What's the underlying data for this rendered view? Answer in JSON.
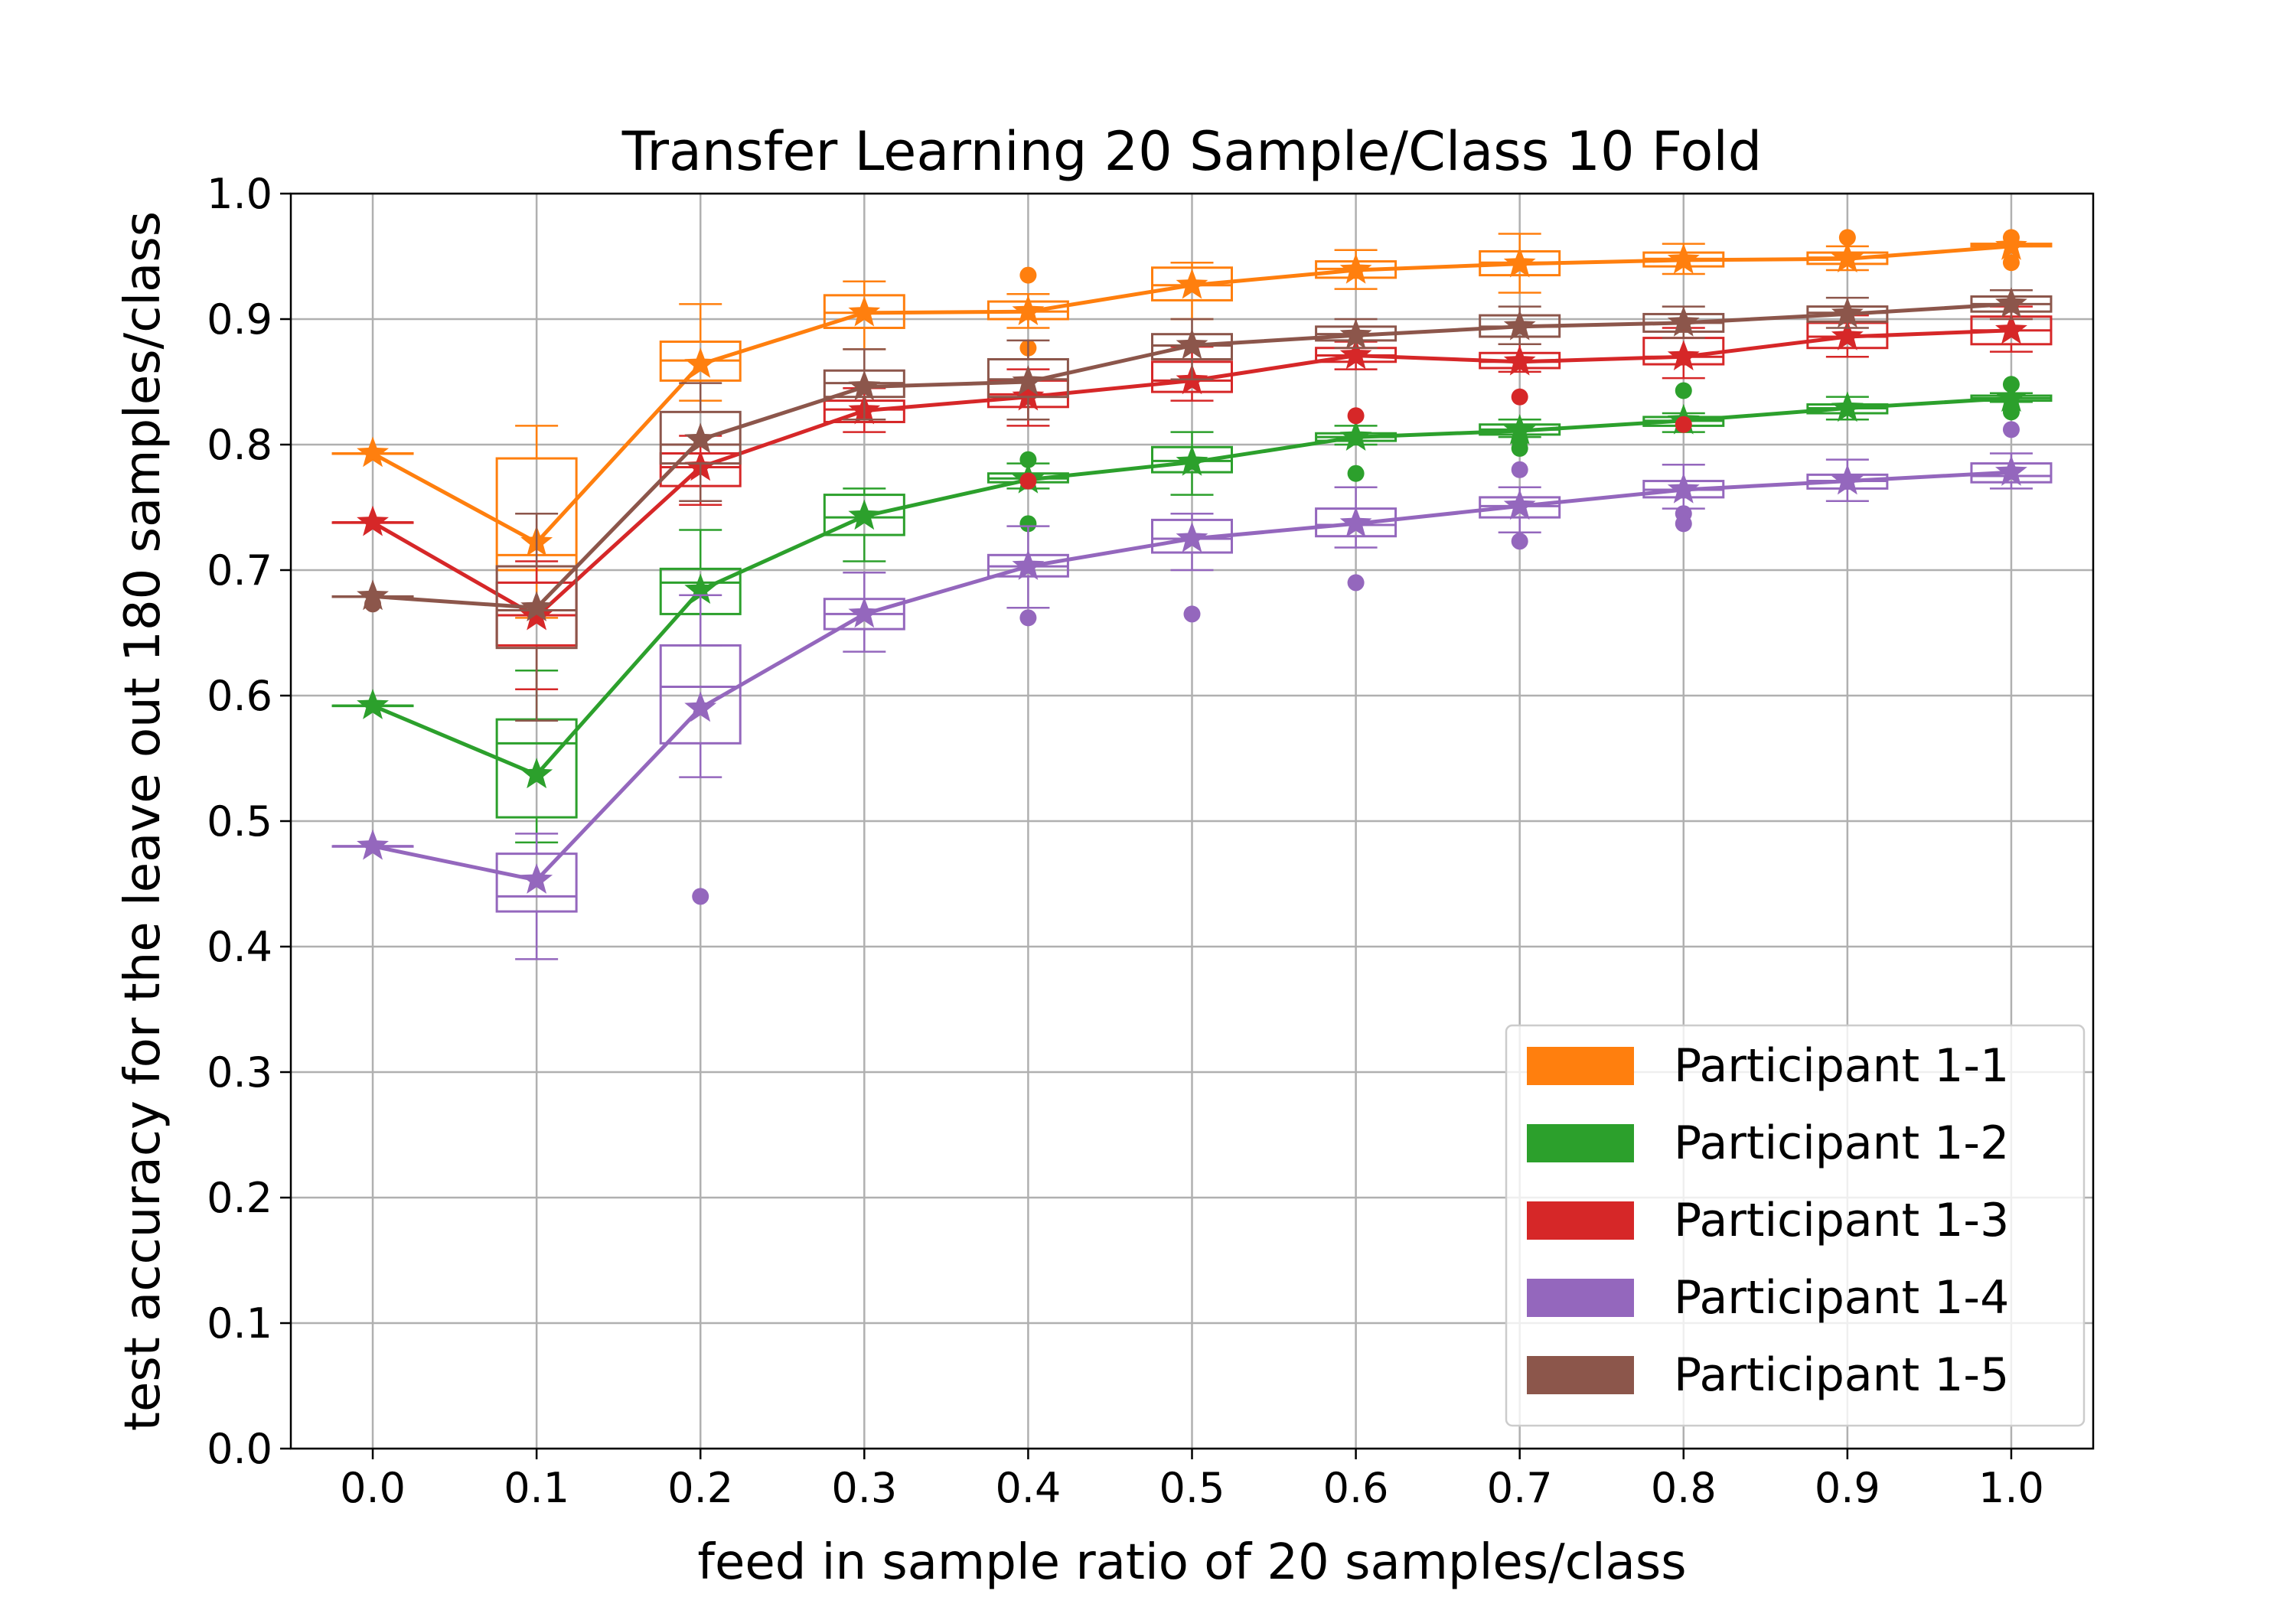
{
  "chart_data": {
    "type": "line",
    "title": "Transfer Learning 20 Sample/Class 10 Fold",
    "xlabel": "feed in sample ratio of 20 samples/class",
    "ylabel": "test accuracy for the leave out 180 samples/class",
    "x": [
      0.0,
      0.1,
      0.2,
      0.3,
      0.4,
      0.5,
      0.6,
      0.7,
      0.8,
      0.9,
      1.0
    ],
    "x_tick_labels": [
      "0.0",
      "0.1",
      "0.2",
      "0.3",
      "0.4",
      "0.5",
      "0.6",
      "0.7",
      "0.8",
      "0.9",
      "1.0"
    ],
    "y_ticks": [
      0.0,
      0.1,
      0.2,
      0.3,
      0.4,
      0.5,
      0.6,
      0.7,
      0.8,
      0.9,
      1.0
    ],
    "y_tick_labels": [
      "0.0",
      "0.1",
      "0.2",
      "0.3",
      "0.4",
      "0.5",
      "0.6",
      "0.7",
      "0.8",
      "0.9",
      "1.0"
    ],
    "xlim": [
      -0.05,
      1.05
    ],
    "ylim": [
      0.0,
      1.0
    ],
    "grid": true,
    "legend_position": "bottom-right",
    "series": [
      {
        "name": "Participant 1-1",
        "color": "#ff7f0e",
        "mean": [
          0.793,
          0.722,
          0.864,
          0.905,
          0.906,
          0.927,
          0.939,
          0.944,
          0.947,
          0.948,
          0.958
        ],
        "boxes": [
          [
            0.793,
            0.793,
            0.793,
            0.793,
            0.793
          ],
          [
            0.662,
            0.7,
            0.712,
            0.789,
            0.815
          ],
          [
            0.835,
            0.851,
            0.867,
            0.882,
            0.912
          ],
          [
            0.876,
            0.893,
            0.905,
            0.919,
            0.93
          ],
          [
            0.893,
            0.9,
            0.906,
            0.914,
            0.92
          ],
          [
            0.9,
            0.915,
            0.927,
            0.941,
            0.945
          ],
          [
            0.924,
            0.933,
            0.94,
            0.946,
            0.955
          ],
          [
            0.921,
            0.935,
            0.945,
            0.954,
            0.968
          ],
          [
            0.936,
            0.942,
            0.948,
            0.953,
            0.96
          ],
          [
            0.939,
            0.944,
            0.949,
            0.953,
            0.958
          ],
          [
            0.958,
            0.958,
            0.959,
            0.96,
            0.96
          ]
        ],
        "outliers": [
          [
            0.4,
            0.935
          ],
          [
            0.4,
            0.877
          ],
          [
            0.9,
            0.965
          ],
          [
            1.0,
            0.965
          ],
          [
            1.0,
            0.945
          ]
        ]
      },
      {
        "name": "Participant 1-2",
        "color": "#2ca02c",
        "mean": [
          0.592,
          0.537,
          0.684,
          0.743,
          0.772,
          0.786,
          0.806,
          0.811,
          0.819,
          0.829,
          0.837
        ],
        "boxes": [
          [
            0.592,
            0.592,
            0.592,
            0.592,
            0.592
          ],
          [
            0.483,
            0.503,
            0.562,
            0.581,
            0.62
          ],
          [
            0.64,
            0.665,
            0.69,
            0.701,
            0.732
          ],
          [
            0.707,
            0.728,
            0.742,
            0.76,
            0.765
          ],
          [
            0.765,
            0.77,
            0.773,
            0.777,
            0.785
          ],
          [
            0.76,
            0.778,
            0.787,
            0.798,
            0.81
          ],
          [
            0.8,
            0.803,
            0.806,
            0.809,
            0.815
          ],
          [
            0.806,
            0.808,
            0.812,
            0.816,
            0.82
          ],
          [
            0.81,
            0.815,
            0.819,
            0.822,
            0.825
          ],
          [
            0.82,
            0.825,
            0.829,
            0.832,
            0.838
          ],
          [
            0.834,
            0.835,
            0.837,
            0.839,
            0.841
          ]
        ],
        "outliers": [
          [
            0.4,
            0.788
          ],
          [
            0.4,
            0.737
          ],
          [
            0.6,
            0.777
          ],
          [
            0.7,
            0.797
          ],
          [
            0.7,
            0.803
          ],
          [
            0.8,
            0.843
          ],
          [
            1.0,
            0.848
          ],
          [
            1.0,
            0.826
          ]
        ]
      },
      {
        "name": "Participant 1-3",
        "color": "#d62728",
        "mean": [
          0.738,
          0.663,
          0.782,
          0.827,
          0.838,
          0.851,
          0.871,
          0.866,
          0.87,
          0.886,
          0.891
        ],
        "boxes": [
          [
            0.738,
            0.738,
            0.738,
            0.738,
            0.738
          ],
          [
            0.605,
            0.64,
            0.664,
            0.69,
            0.707
          ],
          [
            0.752,
            0.767,
            0.782,
            0.793,
            0.807
          ],
          [
            0.81,
            0.818,
            0.828,
            0.835,
            0.845
          ],
          [
            0.815,
            0.83,
            0.84,
            0.851,
            0.86
          ],
          [
            0.835,
            0.842,
            0.851,
            0.866,
            0.878
          ],
          [
            0.86,
            0.866,
            0.871,
            0.877,
            0.882
          ],
          [
            0.858,
            0.861,
            0.866,
            0.873,
            0.88
          ],
          [
            0.853,
            0.864,
            0.87,
            0.885,
            0.893
          ],
          [
            0.87,
            0.877,
            0.886,
            0.897,
            0.903
          ],
          [
            0.874,
            0.88,
            0.891,
            0.902,
            0.91
          ]
        ],
        "outliers": [
          [
            0.4,
            0.771
          ],
          [
            0.6,
            0.823
          ],
          [
            0.7,
            0.838
          ],
          [
            0.8,
            0.816
          ]
        ]
      },
      {
        "name": "Participant 1-4",
        "color": "#9467bd",
        "mean": [
          0.48,
          0.453,
          0.59,
          0.665,
          0.703,
          0.725,
          0.737,
          0.751,
          0.764,
          0.771,
          0.778
        ],
        "boxes": [
          [
            0.48,
            0.48,
            0.48,
            0.48,
            0.48
          ],
          [
            0.39,
            0.428,
            0.44,
            0.474,
            0.49
          ],
          [
            0.535,
            0.562,
            0.607,
            0.64,
            0.68
          ],
          [
            0.635,
            0.653,
            0.665,
            0.677,
            0.698
          ],
          [
            0.67,
            0.695,
            0.703,
            0.712,
            0.735
          ],
          [
            0.7,
            0.714,
            0.725,
            0.74,
            0.745
          ],
          [
            0.718,
            0.727,
            0.736,
            0.749,
            0.766
          ],
          [
            0.73,
            0.742,
            0.751,
            0.758,
            0.766
          ],
          [
            0.749,
            0.758,
            0.764,
            0.771,
            0.784
          ],
          [
            0.755,
            0.765,
            0.771,
            0.776,
            0.788
          ],
          [
            0.765,
            0.77,
            0.775,
            0.785,
            0.793
          ]
        ],
        "outliers": [
          [
            0.2,
            0.44
          ],
          [
            0.4,
            0.662
          ],
          [
            0.5,
            0.665
          ],
          [
            0.6,
            0.69
          ],
          [
            0.7,
            0.723
          ],
          [
            0.7,
            0.78
          ],
          [
            0.8,
            0.745
          ],
          [
            0.8,
            0.737
          ],
          [
            1.0,
            0.812
          ]
        ]
      },
      {
        "name": "Participant 1-5",
        "color": "#8c564b",
        "mean": [
          0.679,
          0.67,
          0.804,
          0.846,
          0.85,
          0.879,
          0.887,
          0.894,
          0.897,
          0.904,
          0.912
        ],
        "boxes": [
          [
            0.679,
            0.679,
            0.679,
            0.679,
            0.679
          ],
          [
            0.58,
            0.638,
            0.668,
            0.703,
            0.745
          ],
          [
            0.755,
            0.785,
            0.8,
            0.826,
            0.849
          ],
          [
            0.82,
            0.838,
            0.849,
            0.859,
            0.876
          ],
          [
            0.82,
            0.838,
            0.852,
            0.868,
            0.883
          ],
          [
            0.852,
            0.868,
            0.879,
            0.888,
            0.9
          ],
          [
            0.877,
            0.883,
            0.888,
            0.894,
            0.9
          ],
          [
            0.88,
            0.886,
            0.894,
            0.903,
            0.91
          ],
          [
            0.885,
            0.89,
            0.897,
            0.904,
            0.91
          ],
          [
            0.893,
            0.898,
            0.905,
            0.91,
            0.917
          ],
          [
            0.9,
            0.906,
            0.912,
            0.918,
            0.923
          ]
        ],
        "outliers": [
          [
            0.0,
            0.673
          ]
        ]
      }
    ]
  }
}
